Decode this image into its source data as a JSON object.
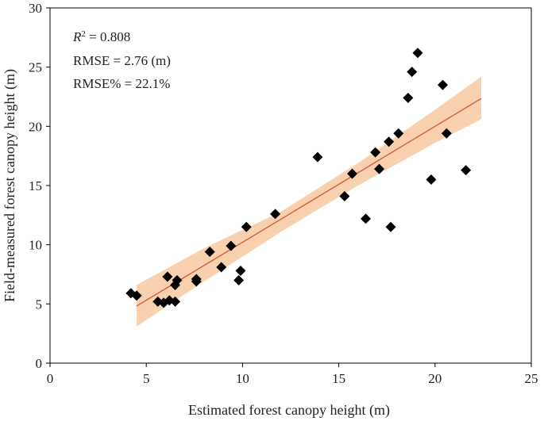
{
  "chart_data": {
    "type": "scatter",
    "title": "",
    "xlabel": "Estimated forest canopy height (m)",
    "ylabel": "Field-measured forest canopy height (m)",
    "xlim": [
      0,
      25
    ],
    "ylim": [
      0,
      30
    ],
    "xticks": [
      0,
      5,
      10,
      15,
      20,
      25
    ],
    "yticks": [
      0,
      5,
      10,
      15,
      20,
      25,
      30
    ],
    "grid": false,
    "colors": {
      "points": "#000000",
      "fit_line": "#d9543a",
      "confidence_band": "#f8c9a0"
    },
    "annotations": {
      "r2_label": "R",
      "r2_sup": "2",
      "r2_value": " = 0.808",
      "rmse": "RMSE = 2.76 (m)",
      "rmse_pct": "RMSE% = 22.1%"
    },
    "fit_line": {
      "x": [
        4.5,
        22.4
      ],
      "y": [
        4.82,
        22.35
      ]
    },
    "confidence_band": {
      "x": [
        4.5,
        8.0,
        12.0,
        16.0,
        20.0,
        22.4
      ],
      "lower": [
        3.1,
        6.9,
        11.1,
        15.0,
        18.6,
        20.6
      ],
      "upper": [
        6.6,
        9.7,
        12.8,
        16.9,
        21.4,
        24.2
      ]
    },
    "points": [
      {
        "x": 4.2,
        "y": 5.9
      },
      {
        "x": 4.5,
        "y": 5.7
      },
      {
        "x": 5.6,
        "y": 5.2
      },
      {
        "x": 5.9,
        "y": 5.1
      },
      {
        "x": 6.1,
        "y": 7.3
      },
      {
        "x": 6.2,
        "y": 5.3
      },
      {
        "x": 6.5,
        "y": 5.2
      },
      {
        "x": 6.5,
        "y": 6.6
      },
      {
        "x": 6.6,
        "y": 7.0
      },
      {
        "x": 7.6,
        "y": 6.9
      },
      {
        "x": 7.6,
        "y": 7.1
      },
      {
        "x": 8.3,
        "y": 9.4
      },
      {
        "x": 8.9,
        "y": 8.1
      },
      {
        "x": 9.4,
        "y": 9.9
      },
      {
        "x": 9.8,
        "y": 7.0
      },
      {
        "x": 9.9,
        "y": 7.8
      },
      {
        "x": 10.2,
        "y": 11.5
      },
      {
        "x": 11.7,
        "y": 12.6
      },
      {
        "x": 13.9,
        "y": 17.4
      },
      {
        "x": 15.3,
        "y": 14.1
      },
      {
        "x": 15.7,
        "y": 16.0
      },
      {
        "x": 16.4,
        "y": 12.2
      },
      {
        "x": 16.9,
        "y": 17.8
      },
      {
        "x": 17.1,
        "y": 16.4
      },
      {
        "x": 17.6,
        "y": 18.7
      },
      {
        "x": 17.7,
        "y": 11.5
      },
      {
        "x": 18.1,
        "y": 19.4
      },
      {
        "x": 18.6,
        "y": 22.4
      },
      {
        "x": 18.8,
        "y": 24.6
      },
      {
        "x": 19.1,
        "y": 26.2
      },
      {
        "x": 19.8,
        "y": 15.5
      },
      {
        "x": 20.4,
        "y": 23.5
      },
      {
        "x": 20.6,
        "y": 19.4
      },
      {
        "x": 21.6,
        "y": 16.3
      }
    ]
  }
}
